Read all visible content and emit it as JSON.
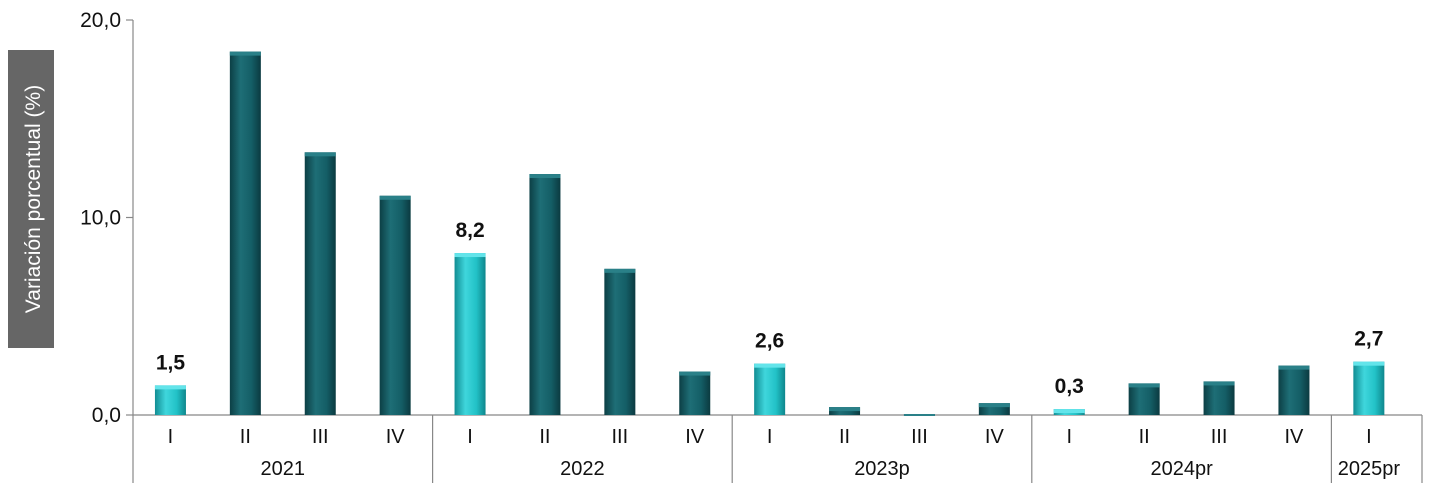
{
  "chart_data": {
    "type": "bar",
    "ylabel": "Variación porcentual (%)",
    "ylim": [
      0,
      20
    ],
    "y_ticks": [
      "0,0",
      "10,0",
      "20,0"
    ],
    "y_tick_values": [
      0,
      10,
      20
    ],
    "grid": false,
    "groups": [
      {
        "label": "2021",
        "quarters": [
          "I",
          "II",
          "III",
          "IV"
        ]
      },
      {
        "label": "2022",
        "quarters": [
          "I",
          "II",
          "III",
          "IV"
        ]
      },
      {
        "label": "2023p",
        "quarters": [
          "I",
          "II",
          "III",
          "IV"
        ]
      },
      {
        "label": "2024pr",
        "quarters": [
          "I",
          "II",
          "III",
          "IV"
        ]
      },
      {
        "label": "2025pr",
        "quarters": [
          "I"
        ]
      }
    ],
    "values": [
      1.5,
      18.4,
      13.3,
      11.1,
      8.2,
      12.2,
      7.4,
      2.2,
      2.6,
      0.4,
      -0.1,
      0.6,
      0.3,
      1.6,
      1.7,
      2.5,
      2.7
    ],
    "data_labels": [
      "1,5",
      "",
      "",
      "",
      "8,2",
      "",
      "",
      "",
      "2,6",
      "",
      "",
      "",
      "0,3",
      "",
      "",
      "",
      "2,7"
    ],
    "highlight": [
      true,
      false,
      false,
      false,
      true,
      false,
      false,
      false,
      true,
      false,
      false,
      false,
      true,
      false,
      false,
      false,
      true
    ],
    "colors": {
      "highlight_top": "#63e4ea",
      "highlight_mid": "#22c2c7",
      "highlight_dark": "#118d93",
      "base_top": "#2a8088",
      "base_mid": "#145e66",
      "base_dark": "#0c3f45",
      "axis": "#888888",
      "ylabel_bg": "#666666",
      "ylabel_text": "#ffffff",
      "text": "#111111"
    }
  }
}
